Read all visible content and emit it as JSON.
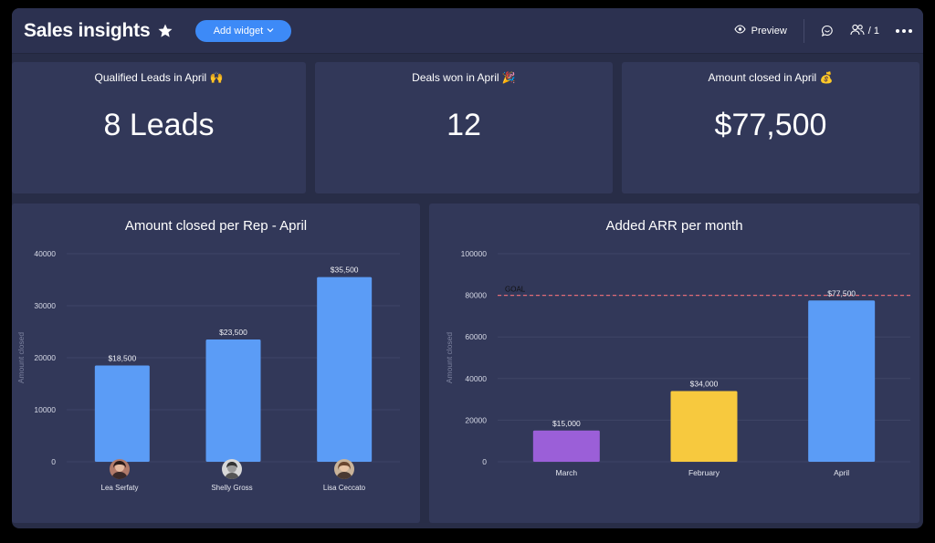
{
  "header": {
    "title": "Sales insights",
    "add_widget_label": "Add widget",
    "preview_label": "Preview",
    "members_label": "/ 1"
  },
  "kpis": [
    {
      "label": "Qualified Leads in April 🙌",
      "value": "8 Leads"
    },
    {
      "label": "Deals won in April 🎉",
      "value": "12"
    },
    {
      "label": "Amount closed in April 💰",
      "value": "$77,500"
    }
  ],
  "colors": {
    "accent": "#3d8af7",
    "bar_blue": "#5b9cf6",
    "bar_purple": "#9b5fd8",
    "bar_yellow": "#f7c93e",
    "goal_line": "#e06b76"
  },
  "chart_data": [
    {
      "type": "bar",
      "title": "Amount closed per Rep - April",
      "ylabel": "Amount closed",
      "xlabel": "",
      "ylim": [
        0,
        40000
      ],
      "yticks": [
        "0",
        "10000",
        "20000",
        "30000",
        "40000"
      ],
      "categories": [
        "Lea Serfaty",
        "Shelly Gross",
        "Lisa Ceccato"
      ],
      "values": [
        18500,
        23500,
        35500
      ],
      "value_labels": [
        "$18,500",
        "$23,500",
        "$35,500"
      ],
      "grid": true
    },
    {
      "type": "bar",
      "title": "Added ARR per month",
      "ylabel": "Amount closed",
      "xlabel": "",
      "ylim": [
        0,
        100000
      ],
      "yticks": [
        "0",
        "20000",
        "40000",
        "60000",
        "80000",
        "100000"
      ],
      "categories": [
        "March",
        "February",
        "April"
      ],
      "values": [
        15000,
        34000,
        77500
      ],
      "value_labels": [
        "$15,000",
        "$34,000",
        "$77,500"
      ],
      "bar_colors": [
        "#9b5fd8",
        "#f7c93e",
        "#5b9cf6"
      ],
      "goal": {
        "label": "GOAL",
        "value": 80000
      },
      "grid": true
    }
  ]
}
